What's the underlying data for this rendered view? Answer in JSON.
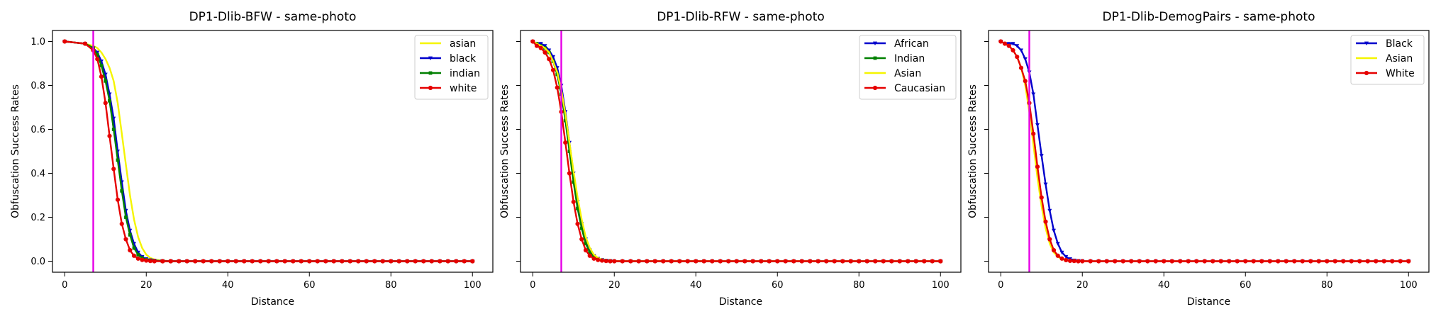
{
  "chart_data": [
    {
      "type": "line",
      "title": "DP1-Dlib-BFW - same-photo",
      "xlabel": "Distance",
      "ylabel": "Obfuscation Success Rates",
      "xlim": [
        -3,
        105
      ],
      "ylim": [
        -0.05,
        1.05
      ],
      "xticks": [
        "0",
        "20",
        "40",
        "60",
        "80",
        "100"
      ],
      "yticks": [
        "0.0",
        "0.2",
        "0.4",
        "0.6",
        "0.8",
        "1.0"
      ],
      "show_ytick_labels": true,
      "grid": false,
      "legend_position": "top-right",
      "vline": {
        "x": 7,
        "color": "#e600e6"
      },
      "series": [
        {
          "name": "asian",
          "color": "#f5f500",
          "marker": "none",
          "x": [
            0,
            5,
            7,
            8,
            9,
            10,
            11,
            12,
            13,
            14,
            15,
            16,
            17,
            18,
            19,
            20,
            21,
            22,
            24,
            26,
            100
          ],
          "y": [
            1.0,
            0.99,
            0.98,
            0.97,
            0.95,
            0.92,
            0.88,
            0.82,
            0.72,
            0.58,
            0.44,
            0.3,
            0.19,
            0.11,
            0.06,
            0.03,
            0.015,
            0.008,
            0.003,
            0.0,
            0.0
          ]
        },
        {
          "name": "black",
          "color": "#0000cc",
          "marker": "triangle",
          "x": [
            0,
            5,
            7,
            8,
            9,
            10,
            11,
            12,
            13,
            14,
            15,
            16,
            17,
            18,
            19,
            20,
            21,
            22,
            24,
            26,
            100
          ],
          "y": [
            1.0,
            0.99,
            0.97,
            0.95,
            0.91,
            0.85,
            0.76,
            0.65,
            0.5,
            0.36,
            0.23,
            0.14,
            0.08,
            0.04,
            0.02,
            0.01,
            0.005,
            0.003,
            0.001,
            0.0,
            0.0
          ]
        },
        {
          "name": "indian",
          "color": "#008000",
          "marker": "square",
          "x": [
            0,
            5,
            7,
            8,
            9,
            10,
            11,
            12,
            13,
            14,
            15,
            16,
            17,
            18,
            19,
            20,
            21,
            22,
            24,
            26,
            100
          ],
          "y": [
            1.0,
            0.99,
            0.97,
            0.94,
            0.89,
            0.82,
            0.73,
            0.6,
            0.46,
            0.32,
            0.2,
            0.12,
            0.06,
            0.03,
            0.015,
            0.007,
            0.003,
            0.001,
            0.0,
            0.0,
            0.0
          ]
        },
        {
          "name": "white",
          "color": "#e60000",
          "marker": "circle",
          "x": [
            0,
            5,
            7,
            8,
            9,
            10,
            11,
            12,
            13,
            14,
            15,
            16,
            17,
            18,
            19,
            20,
            21,
            22,
            24,
            26,
            100
          ],
          "y": [
            1.0,
            0.99,
            0.96,
            0.92,
            0.84,
            0.72,
            0.57,
            0.42,
            0.28,
            0.17,
            0.1,
            0.05,
            0.025,
            0.012,
            0.006,
            0.003,
            0.001,
            0.0,
            0.0,
            0.0,
            0.0
          ]
        }
      ]
    },
    {
      "type": "line",
      "title": "DP1-Dlib-RFW - same-photo",
      "xlabel": "Distance",
      "ylabel": "Obfuscation Success Rates",
      "xlim": [
        -3,
        105
      ],
      "ylim": [
        -0.05,
        1.05
      ],
      "xticks": [
        "0",
        "20",
        "40",
        "60",
        "80",
        "100"
      ],
      "yticks": [
        "0.0",
        "0.2",
        "0.4",
        "0.6",
        "0.8",
        "1.0"
      ],
      "show_ytick_labels": false,
      "grid": false,
      "legend_position": "top-right",
      "vline": {
        "x": 7,
        "color": "#e600e6"
      },
      "series": [
        {
          "name": "African",
          "color": "#0000cc",
          "marker": "triangle",
          "x": [
            0,
            1,
            2,
            3,
            4,
            5,
            6,
            7,
            8,
            9,
            10,
            11,
            12,
            13,
            14,
            15,
            16,
            17,
            18,
            19,
            20,
            22,
            100
          ],
          "y": [
            1.0,
            0.99,
            0.99,
            0.98,
            0.96,
            0.93,
            0.88,
            0.8,
            0.68,
            0.54,
            0.4,
            0.27,
            0.17,
            0.1,
            0.05,
            0.025,
            0.012,
            0.006,
            0.003,
            0.001,
            0.0,
            0.0,
            0.0
          ]
        },
        {
          "name": "Indian",
          "color": "#008000",
          "marker": "square",
          "x": [
            0,
            1,
            2,
            3,
            4,
            5,
            6,
            7,
            8,
            9,
            10,
            11,
            12,
            13,
            14,
            15,
            16,
            17,
            18,
            19,
            20,
            22,
            100
          ],
          "y": [
            1.0,
            0.99,
            0.98,
            0.97,
            0.95,
            0.91,
            0.85,
            0.76,
            0.64,
            0.5,
            0.36,
            0.24,
            0.15,
            0.08,
            0.04,
            0.02,
            0.01,
            0.005,
            0.002,
            0.001,
            0.0,
            0.0,
            0.0
          ]
        },
        {
          "name": "Asian",
          "color": "#f5f500",
          "marker": "none",
          "x": [
            0,
            1,
            2,
            3,
            4,
            5,
            6,
            7,
            8,
            9,
            10,
            11,
            12,
            13,
            14,
            15,
            16,
            17,
            18,
            19,
            20,
            22,
            100
          ],
          "y": [
            1.0,
            0.99,
            0.98,
            0.97,
            0.95,
            0.91,
            0.86,
            0.78,
            0.67,
            0.54,
            0.41,
            0.29,
            0.19,
            0.11,
            0.06,
            0.03,
            0.015,
            0.007,
            0.003,
            0.001,
            0.0,
            0.0,
            0.0
          ]
        },
        {
          "name": "Caucasian",
          "color": "#e60000",
          "marker": "circle",
          "x": [
            0,
            1,
            2,
            3,
            4,
            5,
            6,
            7,
            8,
            9,
            10,
            11,
            12,
            13,
            14,
            15,
            16,
            17,
            18,
            19,
            20,
            22,
            100
          ],
          "y": [
            1.0,
            0.98,
            0.97,
            0.95,
            0.92,
            0.87,
            0.79,
            0.68,
            0.54,
            0.4,
            0.27,
            0.17,
            0.1,
            0.05,
            0.025,
            0.012,
            0.006,
            0.003,
            0.001,
            0.0,
            0.0,
            0.0,
            0.0
          ]
        }
      ]
    },
    {
      "type": "line",
      "title": "DP1-Dlib-DemogPairs - same-photo",
      "xlabel": "Distance",
      "ylabel": "Obfuscation Success Rates",
      "xlim": [
        -3,
        105
      ],
      "ylim": [
        -0.05,
        1.05
      ],
      "xticks": [
        "0",
        "20",
        "40",
        "60",
        "80",
        "100"
      ],
      "yticks": [
        "0.0",
        "0.2",
        "0.4",
        "0.6",
        "0.8",
        "1.0"
      ],
      "show_ytick_labels": false,
      "grid": false,
      "legend_position": "top-right",
      "vline": {
        "x": 7,
        "color": "#e600e6"
      },
      "series": [
        {
          "name": "Black",
          "color": "#0000cc",
          "marker": "triangle",
          "x": [
            0,
            1,
            2,
            3,
            4,
            5,
            6,
            7,
            8,
            9,
            10,
            11,
            12,
            13,
            14,
            15,
            16,
            17,
            18,
            19,
            20,
            22,
            100
          ],
          "y": [
            1.0,
            0.99,
            0.99,
            0.99,
            0.98,
            0.96,
            0.92,
            0.86,
            0.76,
            0.62,
            0.48,
            0.35,
            0.23,
            0.14,
            0.08,
            0.04,
            0.02,
            0.01,
            0.004,
            0.002,
            0.001,
            0.0,
            0.0
          ]
        },
        {
          "name": "Asian",
          "color": "#f5f500",
          "marker": "none",
          "x": [
            0,
            1,
            2,
            3,
            4,
            5,
            6,
            7,
            8,
            9,
            10,
            11,
            12,
            13,
            14,
            15,
            16,
            17,
            18,
            19,
            20,
            22,
            100
          ],
          "y": [
            1.0,
            0.99,
            0.98,
            0.96,
            0.93,
            0.88,
            0.8,
            0.68,
            0.53,
            0.38,
            0.25,
            0.15,
            0.08,
            0.04,
            0.02,
            0.01,
            0.004,
            0.002,
            0.001,
            0.0,
            0.0,
            0.0,
            0.0
          ]
        },
        {
          "name": "White",
          "color": "#e60000",
          "marker": "circle",
          "x": [
            0,
            1,
            2,
            3,
            4,
            5,
            6,
            7,
            8,
            9,
            10,
            11,
            12,
            13,
            14,
            15,
            16,
            17,
            18,
            19,
            20,
            22,
            100
          ],
          "y": [
            1.0,
            0.99,
            0.98,
            0.96,
            0.93,
            0.88,
            0.82,
            0.72,
            0.58,
            0.43,
            0.29,
            0.18,
            0.1,
            0.05,
            0.025,
            0.012,
            0.005,
            0.002,
            0.001,
            0.0,
            0.0,
            0.0,
            0.0
          ]
        }
      ]
    }
  ]
}
